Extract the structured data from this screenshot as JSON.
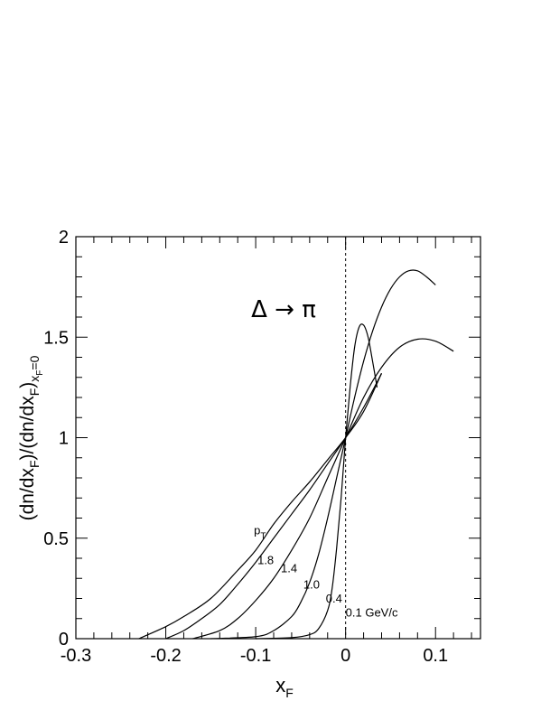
{
  "chart_data": {
    "type": "line",
    "title": "",
    "annotation": "Δ → π",
    "xlabel": {
      "main": "x",
      "sub": "F"
    },
    "ylabel": {
      "text_main": "(dn/dx",
      "sub1": "F",
      "mid": ")/(dn/dx",
      "sub2": "F",
      "close": ")",
      "sub3": "x",
      "sub3sub": "F",
      "sub3tail": "=0"
    },
    "xlim": [
      -0.3,
      0.15
    ],
    "ylim": [
      0,
      2
    ],
    "xticks": [
      -0.3,
      -0.2,
      -0.1,
      0,
      0.1
    ],
    "xtick_labels": [
      "-0.3",
      "-0.2",
      "-0.1",
      "0",
      "0.1"
    ],
    "yticks": [
      0,
      0.5,
      1,
      1.5,
      2
    ],
    "ytick_labels": [
      "0",
      "0.5",
      "1",
      "1.5",
      "2"
    ],
    "reference_line_x": 0,
    "legend_title": {
      "main": "p",
      "sub": "T"
    },
    "series": [
      {
        "label": "0.1 GeV/c",
        "x": [
          -0.1,
          -0.06,
          -0.04,
          -0.03,
          -0.02,
          -0.015,
          -0.01,
          -0.005,
          0,
          0.005,
          0.01,
          0.015,
          0.02,
          0.025,
          0.03,
          0.035
        ],
        "y": [
          0,
          0.005,
          0.02,
          0.05,
          0.14,
          0.25,
          0.45,
          0.7,
          1.0,
          1.25,
          1.45,
          1.55,
          1.56,
          1.5,
          1.38,
          1.25
        ]
      },
      {
        "label": "0.4",
        "x": [
          -0.15,
          -0.1,
          -0.08,
          -0.06,
          -0.05,
          -0.04,
          -0.03,
          -0.02,
          -0.01,
          0,
          0.01,
          0.02,
          0.03,
          0.04,
          0.05,
          0.06,
          0.07,
          0.08,
          0.09,
          0.1
        ],
        "y": [
          0,
          0.01,
          0.04,
          0.11,
          0.18,
          0.28,
          0.42,
          0.6,
          0.8,
          1.0,
          1.2,
          1.38,
          1.53,
          1.65,
          1.74,
          1.8,
          1.83,
          1.83,
          1.8,
          1.76
        ]
      },
      {
        "label": "1.0",
        "x": [
          -0.17,
          -0.14,
          -0.12,
          -0.1,
          -0.08,
          -0.06,
          -0.04,
          -0.02,
          0,
          0.02,
          0.04,
          0.06,
          0.08,
          0.1,
          0.12
        ],
        "y": [
          0,
          0.04,
          0.1,
          0.19,
          0.3,
          0.44,
          0.6,
          0.8,
          1.0,
          1.2,
          1.35,
          1.45,
          1.49,
          1.48,
          1.43
        ]
      },
      {
        "label": "1.4",
        "x": [
          -0.2,
          -0.18,
          -0.16,
          -0.14,
          -0.12,
          -0.1,
          -0.08,
          -0.06,
          -0.04,
          -0.02,
          0,
          0.02,
          0.04
        ],
        "y": [
          0,
          0.04,
          0.1,
          0.17,
          0.27,
          0.38,
          0.5,
          0.62,
          0.74,
          0.87,
          1.0,
          1.15,
          1.32
        ]
      },
      {
        "label": "1.8",
        "x": [
          -0.23,
          -0.2,
          -0.18,
          -0.15,
          -0.12,
          -0.1,
          -0.08,
          -0.06,
          -0.04,
          -0.02,
          0,
          0.02,
          0.04
        ],
        "y": [
          0,
          0.06,
          0.11,
          0.2,
          0.34,
          0.44,
          0.57,
          0.68,
          0.78,
          0.89,
          1.0,
          1.13,
          1.32
        ]
      }
    ],
    "curve_labels": [
      {
        "text": "1.8",
        "x": -0.098,
        "y": 0.37
      },
      {
        "text": "1.4",
        "x": -0.072,
        "y": 0.33
      },
      {
        "text": "1.0",
        "x": -0.047,
        "y": 0.25
      },
      {
        "text": "0.4",
        "x": -0.022,
        "y": 0.18
      },
      {
        "text": "0.1 GeV/c",
        "x": 0.0,
        "y": 0.11
      }
    ],
    "legend_title_pos": {
      "x": -0.102,
      "y": 0.52
    },
    "annotation_pos": {
      "x": -0.105,
      "y": 1.6
    },
    "grid": false,
    "legend": "none"
  }
}
